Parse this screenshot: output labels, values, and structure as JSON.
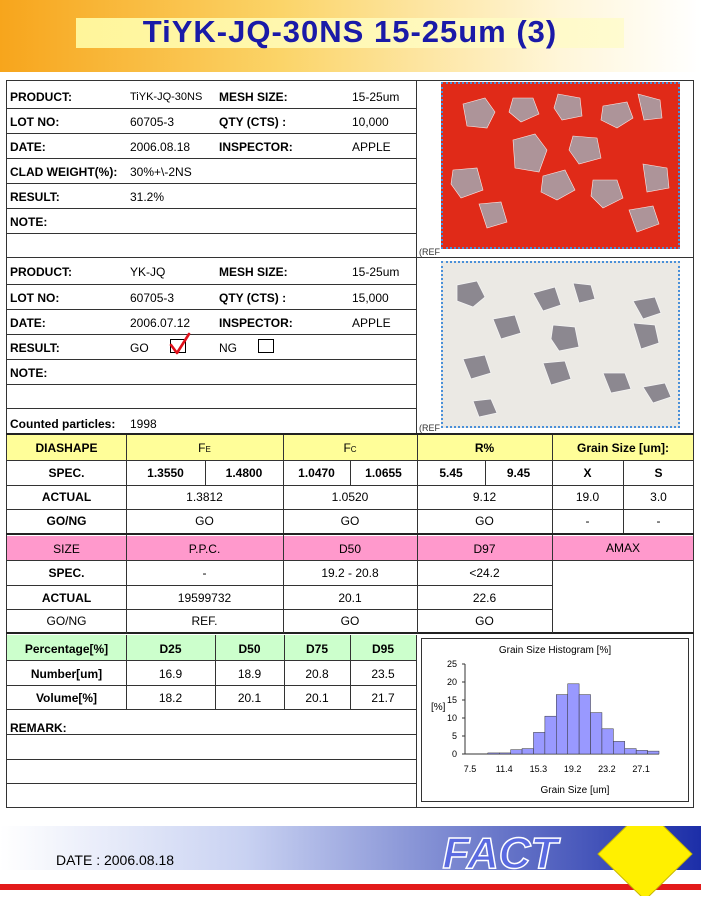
{
  "title": "TiYK-JQ-30NS 15-25um (3)",
  "section1": {
    "product_label": "PRODUCT:",
    "product": "TiYK-JQ-30NS",
    "mesh_label": "MESH SIZE:",
    "mesh": "15-25um",
    "lot_label": "LOT NO:",
    "lot": "60705-3",
    "qty_label": "QTY (CTS) :",
    "qty": "10,000",
    "date_label": "DATE:",
    "date": "2006.08.18",
    "inspector_label": "INSPECTOR:",
    "inspector": "APPLE",
    "clad_label": "CLAD WEIGHT(%):",
    "clad": "30%+\\-2NS",
    "result_label": "RESULT:",
    "result": "31.2%",
    "note_label": "NOTE:",
    "ref": "(REF"
  },
  "section2": {
    "product_label": "PRODUCT:",
    "product": "YK-JQ",
    "mesh_label": "MESH SIZE:",
    "mesh": "15-25um",
    "lot_label": "LOT NO:",
    "lot": "60705-3",
    "qty_label": "QTY (CTS) :",
    "qty": "15,000",
    "date_label": "DATE:",
    "date": "2006.07.12",
    "inspector_label": "INSPECTOR:",
    "inspector": "APPLE",
    "result_label": "RESULT:",
    "go": "GO",
    "ng": "NG",
    "note_label": "NOTE:",
    "counted_label": "Counted particles:",
    "counted": "1998",
    "ref": "(REF"
  },
  "table1": {
    "h_diashape": "DIASHAPE",
    "h_fe": "F",
    "h_fe_sub": "E",
    "h_fc": "F",
    "h_fc_sub": "C",
    "h_r": "R%",
    "h_grain": "Grain Size [um]:",
    "spec_label": "SPEC.",
    "fe_min": "1.3550",
    "fe_max": "1.4800",
    "fc_min": "1.0470",
    "fc_max": "1.0655",
    "r_min": "5.45",
    "r_max": "9.45",
    "x": "X",
    "s": "S",
    "actual_label": "ACTUAL",
    "fe_actual": "1.3812",
    "fc_actual": "1.0520",
    "r_actual": "9.12",
    "x_actual": "19.0",
    "s_actual": "3.0",
    "gong_label": "GO/NG",
    "fe_gong": "GO",
    "fc_gong": "GO",
    "r_gong": "GO",
    "x_gong": "-",
    "s_gong": "-"
  },
  "table2": {
    "h_size": "SIZE",
    "h_ppc": "P.P.C.",
    "h_d50": "D50",
    "h_d97": "D97",
    "h_amax": "AMAX",
    "spec_label": "SPEC.",
    "ppc_spec": "-",
    "d50_spec": "19.2 - 20.8",
    "d97_spec": "<24.2",
    "actual_label": "ACTUAL",
    "ppc_actual": "19599732",
    "d50_actual": "20.1",
    "d97_actual": "22.6",
    "gong_label": "GO/NG",
    "ppc_gong": "REF.",
    "d50_gong": "GO",
    "d97_gong": "GO"
  },
  "table3": {
    "h_pct": "Percentage[%]",
    "h_d25": "D25",
    "h_d50": "D50",
    "h_d75": "D75",
    "h_d95": "D95",
    "num_label": "Number[um]",
    "num": [
      "16.9",
      "18.9",
      "20.8",
      "23.5"
    ],
    "vol_label": "Volume[%]",
    "vol": [
      "18.2",
      "20.1",
      "20.1",
      "21.7"
    ],
    "remark_label": "REMARK:"
  },
  "chart_data": {
    "type": "bar",
    "title": "Grain Size Histogram [%]",
    "xlabel": "Grain Size [um]",
    "ylabel": "[%]",
    "ylim": [
      0,
      25
    ],
    "yticks": [
      0,
      5,
      10,
      15,
      20,
      25
    ],
    "xticks": [
      "7.5",
      "11.4",
      "15.3",
      "19.2",
      "23.2",
      "27.1"
    ],
    "values": [
      0,
      0,
      0.3,
      0.3,
      1.2,
      1.5,
      6,
      10.5,
      16.5,
      19.5,
      16.5,
      11.5,
      7,
      3.5,
      1.5,
      1,
      0.8
    ],
    "color": "#9999ff"
  },
  "footer": {
    "date": "DATE : 2006.08.18",
    "logo": "FACT"
  }
}
